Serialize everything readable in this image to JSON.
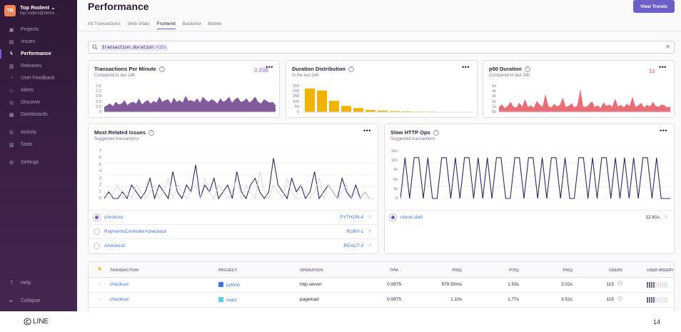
{
  "org": {
    "avatar": "TR",
    "name": "Top Rodent",
    "sub": "top-rodent@demo..."
  },
  "sidebar": {
    "items": [
      {
        "label": "Projects",
        "icon": "projects-icon"
      },
      {
        "label": "Issues",
        "icon": "issues-icon"
      },
      {
        "label": "Performance",
        "icon": "performance-icon",
        "active": true
      },
      {
        "label": "Releases",
        "icon": "releases-icon"
      },
      {
        "label": "User Feedback",
        "icon": "feedback-icon"
      },
      {
        "label": "Alerts",
        "icon": "alerts-icon"
      },
      {
        "label": "Discover",
        "icon": "discover-icon"
      },
      {
        "label": "Dashboards",
        "icon": "dashboards-icon"
      },
      {
        "label": "Activity",
        "icon": "activity-icon"
      },
      {
        "label": "Stats",
        "icon": "stats-icon"
      },
      {
        "label": "Settings",
        "icon": "settings-icon"
      }
    ],
    "bottom": [
      {
        "label": "Help",
        "icon": "help-icon"
      },
      {
        "label": "Collapse",
        "icon": "collapse-icon"
      }
    ]
  },
  "header": {
    "title": "Performance",
    "trends_button": "View Trends"
  },
  "tabs": [
    "All Transactions",
    "Web Vitals",
    "Frontend",
    "Backend",
    "Mobile"
  ],
  "selected_tab": "Frontend",
  "search": {
    "key": "transaction.duration",
    "op": ":<",
    "value": "15s"
  },
  "cards": {
    "tpm": {
      "title": "Transactions Per Minute",
      "sub": "Compared to last 24h",
      "value": "0.498",
      "ticks": [
        "1.5",
        "1.2",
        "0.9",
        "0.6",
        "0.3",
        "0"
      ],
      "color": "#6c3e8a"
    },
    "duration": {
      "title": "Duration Distribution",
      "sub": "In the last 24h",
      "ticks": [
        "250",
        "200",
        "150",
        "100",
        "50",
        "0"
      ],
      "color": "#f0b400"
    },
    "p50": {
      "title": "p50 Duration",
      "sub": "Compared to last 24h",
      "value": "1s",
      "ticks": [
        "5s",
        "4s",
        "3s",
        "2s",
        "1s",
        "0s"
      ],
      "color": "#e5545f"
    },
    "issues": {
      "title": "Most Related Issues",
      "sub": "Suggested transactions",
      "ticks": [
        "7",
        "6",
        "5",
        "4",
        "3",
        "2",
        "1",
        "0"
      ]
    },
    "http": {
      "title": "Slow HTTP Ops",
      "sub": "Suggested transactions",
      "ticks": [
        "15s",
        "12s",
        "9s",
        "6s",
        "3s",
        "0"
      ]
    }
  },
  "chart_data": [
    {
      "type": "area",
      "title": "Transactions Per Minute",
      "ylim": [
        0,
        1.5
      ],
      "values": [
        0.3,
        0.4,
        0.5,
        0.35,
        0.6,
        0.45,
        0.5,
        0.7,
        0.4,
        0.55,
        0.6,
        0.5,
        0.8,
        0.45,
        0.6,
        0.7,
        0.5,
        0.65,
        0.55,
        0.9,
        0.6,
        0.7,
        0.75,
        0.5,
        0.85,
        0.6,
        0.7,
        0.55,
        0.95,
        0.65,
        0.7,
        0.6,
        0.8,
        0.55,
        0.9,
        0.7,
        0.6,
        0.75,
        0.65,
        0.5,
        0.8,
        0.6,
        0.7,
        0.9,
        0.55,
        0.75,
        0.85,
        0.6,
        0.65,
        0.8,
        0.55,
        0.7,
        0.9,
        0.6,
        0.5,
        0.75,
        0.65,
        0.55,
        0.6,
        0.4
      ]
    },
    {
      "type": "bar",
      "title": "Duration Distribution",
      "ylim": [
        0,
        250
      ],
      "values": [
        230,
        210,
        110,
        60,
        40,
        20,
        15,
        10,
        8,
        5,
        5,
        3,
        3,
        2
      ]
    },
    {
      "type": "area",
      "title": "p50 Duration",
      "ylim": [
        0,
        5
      ],
      "values": [
        1,
        1.5,
        0.8,
        1.2,
        2,
        1,
        0.9,
        1.8,
        1.1,
        2.5,
        1,
        1.3,
        0.8,
        2.2,
        1.5,
        1,
        3.5,
        1.2,
        0.9,
        1.6,
        1.1,
        1.4,
        2.8,
        1,
        1.2,
        1.7,
        0.9,
        1.3,
        4.5,
        1.1,
        1,
        1.5,
        2.1,
        1,
        1.3,
        0.8,
        1.9,
        1.2,
        1.5,
        1,
        2.6,
        1.1,
        1.4,
        0.9,
        1.6,
        1.2,
        3,
        1,
        1.3,
        1.8,
        0.9,
        1.4,
        1.1,
        2,
        1.2,
        1,
        1.5,
        1.3,
        0.9,
        1.1
      ]
    },
    {
      "type": "line",
      "title": "Most Related Issues",
      "ylim": [
        0,
        7
      ],
      "series": [
        {
          "values": [
            0,
            1,
            0,
            0,
            1,
            0,
            2,
            1,
            0,
            1,
            3,
            0,
            2,
            1,
            0,
            4,
            1,
            0,
            2,
            1,
            5,
            0,
            2,
            1,
            3,
            0,
            1,
            2,
            0,
            4,
            1,
            0,
            2,
            3,
            1,
            0,
            1,
            6,
            2,
            1,
            0,
            3,
            1,
            2,
            0,
            1,
            4,
            0,
            1,
            2,
            1,
            0,
            3,
            1,
            0,
            2,
            0,
            1,
            0,
            0
          ]
        },
        {
          "values": [
            1,
            0,
            1,
            2,
            0,
            1,
            0,
            2,
            1,
            0,
            1,
            2,
            0,
            1,
            3,
            0,
            2,
            1,
            0,
            1,
            2,
            0,
            3,
            1,
            0,
            2,
            1,
            0,
            1,
            3,
            0,
            2,
            1,
            0,
            4,
            1,
            0,
            2,
            1,
            0,
            3,
            1,
            0,
            2,
            1,
            0,
            1,
            3,
            0,
            2,
            1,
            0,
            1,
            2,
            0,
            1,
            0,
            1,
            0,
            0
          ]
        }
      ]
    },
    {
      "type": "line",
      "title": "Slow HTTP Ops",
      "ylim": [
        0,
        15
      ],
      "series": [
        {
          "values": [
            0,
            13,
            0,
            13,
            13,
            0,
            13,
            0,
            0,
            13,
            13,
            0,
            13,
            0,
            13,
            13,
            0,
            13,
            0,
            13,
            0,
            13,
            13,
            0,
            0,
            13,
            13,
            0,
            13,
            13,
            0,
            13,
            0,
            13,
            13,
            0,
            13,
            0,
            0,
            13,
            13,
            0,
            13,
            0,
            13,
            13,
            0,
            13,
            0,
            13,
            0,
            13,
            0,
            13,
            13,
            0,
            13,
            0,
            0,
            0
          ]
        }
      ]
    }
  ],
  "issues_rows": [
    {
      "name": "checkout",
      "tag": "PYTHON-4",
      "selected": true
    },
    {
      "name": "PaymentsController#checkout",
      "tag": "RUBY-1",
      "selected": false
    },
    {
      "name": "/checkout/",
      "tag": "REACT-3",
      "selected": false
    }
  ],
  "http_rows": [
    {
      "name": "round.start",
      "value": "12.81s",
      "selected": true
    }
  ],
  "table": {
    "columns": [
      "TRANSACTION",
      "PROJECT",
      "OPERATION",
      "TPM ↓",
      "P50()",
      "P75()",
      "P95()",
      "USERS",
      "USER MISERY"
    ],
    "rows": [
      {
        "transaction": "checkout",
        "project": "python",
        "project_color": "#3d74db",
        "operation": "http.server",
        "tpm": "0.0875",
        "p50": "979.50ms",
        "p75": "1.53s",
        "p95": "3.02s",
        "users": "115",
        "misery": 4
      },
      {
        "transaction": "checkout",
        "project": "react",
        "project_color": "#5ad0e6",
        "operation": "pageload",
        "tpm": "0.0875",
        "p50": "1.10s",
        "p75": "1.77s",
        "p95": "3.51s",
        "users": "115",
        "misery": 4
      }
    ]
  },
  "footer": {
    "brand": "LINE",
    "page": "14"
  }
}
